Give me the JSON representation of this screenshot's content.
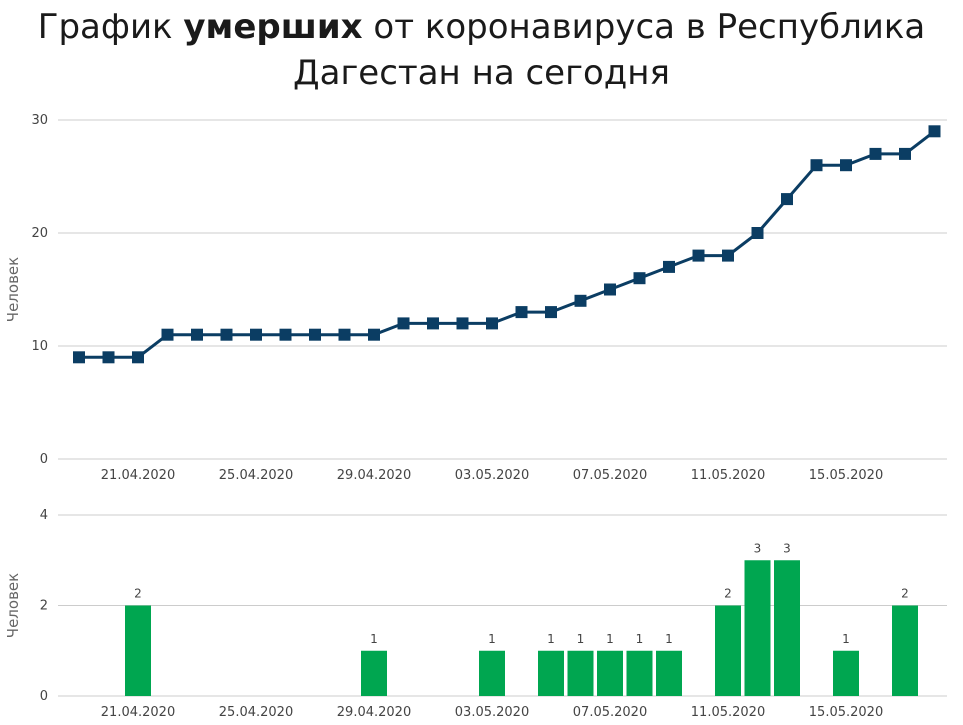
{
  "title": {
    "prefix": "График ",
    "bold": "умерших",
    "suffix": " от коронавируса в Республика",
    "line2": "Дагестан на сегодня"
  },
  "colors": {
    "line": "#0b3d63",
    "bar": "#00a650",
    "grid": "#cccccc"
  },
  "chart_data": [
    {
      "type": "line",
      "ylabel": "Человек",
      "ylim": [
        0,
        30
      ],
      "yticks": [
        0,
        10,
        20,
        30
      ],
      "x": [
        "19.04.2020",
        "20.04.2020",
        "21.04.2020",
        "22.04.2020",
        "23.04.2020",
        "24.04.2020",
        "25.04.2020",
        "26.04.2020",
        "27.04.2020",
        "28.04.2020",
        "29.04.2020",
        "30.04.2020",
        "01.05.2020",
        "02.05.2020",
        "03.05.2020",
        "04.05.2020",
        "05.05.2020",
        "06.05.2020",
        "07.05.2020",
        "08.05.2020",
        "09.05.2020",
        "10.05.2020",
        "11.05.2020",
        "12.05.2020",
        "13.05.2020",
        "14.05.2020",
        "15.05.2020",
        "16.05.2020",
        "17.05.2020",
        "18.05.2020"
      ],
      "values": [
        9,
        9,
        9,
        11,
        11,
        11,
        11,
        11,
        11,
        11,
        11,
        12,
        12,
        12,
        12,
        13,
        13,
        14,
        15,
        16,
        17,
        18,
        18,
        20,
        23,
        26,
        26,
        27,
        27,
        29
      ],
      "xticks": [
        "21.04.2020",
        "25.04.2020",
        "29.04.2020",
        "03.05.2020",
        "07.05.2020",
        "11.05.2020",
        "15.05.2020"
      ],
      "grid": true
    },
    {
      "type": "bar",
      "ylabel": "Человек",
      "ylim": [
        0,
        4
      ],
      "yticks": [
        0,
        2,
        4
      ],
      "x": [
        "19.04.2020",
        "20.04.2020",
        "21.04.2020",
        "22.04.2020",
        "23.04.2020",
        "24.04.2020",
        "25.04.2020",
        "26.04.2020",
        "27.04.2020",
        "28.04.2020",
        "29.04.2020",
        "30.04.2020",
        "01.05.2020",
        "02.05.2020",
        "03.05.2020",
        "04.05.2020",
        "05.05.2020",
        "06.05.2020",
        "07.05.2020",
        "08.05.2020",
        "09.05.2020",
        "10.05.2020",
        "11.05.2020",
        "12.05.2020",
        "13.05.2020",
        "14.05.2020",
        "15.05.2020",
        "16.05.2020",
        "17.05.2020",
        "18.05.2020"
      ],
      "values": [
        0,
        0,
        2,
        0,
        0,
        0,
        0,
        0,
        0,
        0,
        1,
        0,
        0,
        0,
        1,
        0,
        1,
        1,
        1,
        1,
        1,
        0,
        2,
        3,
        3,
        0,
        1,
        0,
        2,
        0
      ],
      "xticks": [
        "21.04.2020",
        "25.04.2020",
        "29.04.2020",
        "03.05.2020",
        "07.05.2020",
        "11.05.2020",
        "15.05.2020"
      ],
      "grid": true
    }
  ]
}
